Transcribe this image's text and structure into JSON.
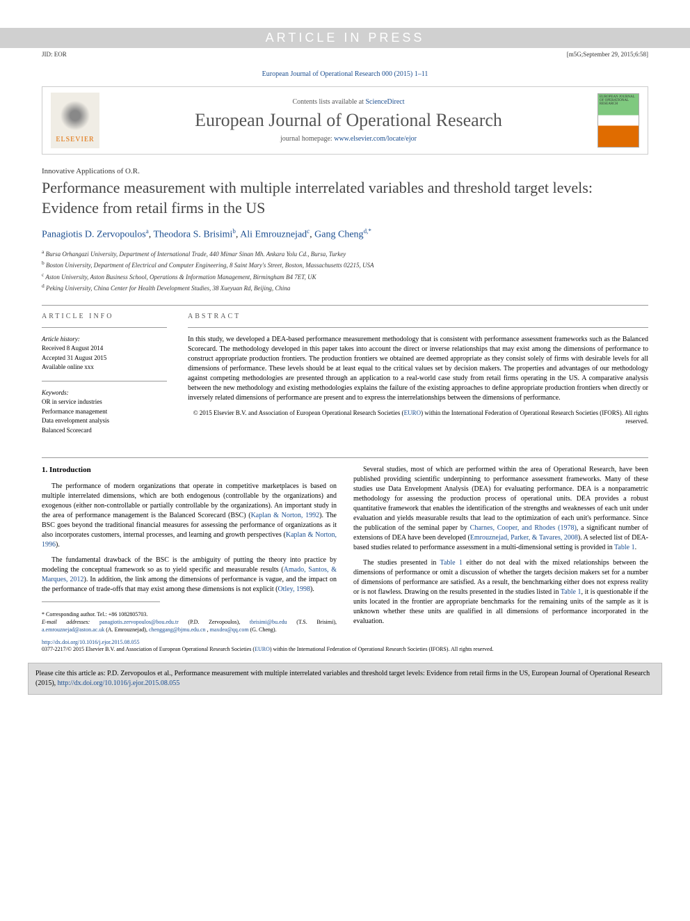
{
  "topbar": {
    "text": "ARTICLE IN PRESS"
  },
  "topmeta": {
    "left": "JID: EOR",
    "right": "[m5G;September 29, 2015;6:58]"
  },
  "journal_ref": "European Journal of Operational Research 000 (2015) 1–11",
  "header": {
    "elsevier": "ELSEVIER",
    "contents_prefix": "Contents lists available at ",
    "contents_link": "ScienceDirect",
    "journal_title": "European Journal of Operational Research",
    "homepage_prefix": "journal homepage: ",
    "homepage_url": "www.elsevier.com/locate/ejor",
    "cover_text": "EUROPEAN JOURNAL OF OPERATIONAL RESEARCH"
  },
  "section_label": "Innovative Applications of O.R.",
  "title": "Performance measurement with multiple interrelated variables and threshold target levels: Evidence from retail firms in the US",
  "authors_html": "Panagiotis D. Zervopoulos|a|, Theodora S. Brisimi|b|, Ali Emrouznejad|c|, Gang Cheng|d,*",
  "authors": [
    {
      "name": "Panagiotis D. Zervopoulos",
      "sup": "a"
    },
    {
      "name": "Theodora S. Brisimi",
      "sup": "b"
    },
    {
      "name": "Ali Emrouznejad",
      "sup": "c"
    },
    {
      "name": "Gang Cheng",
      "sup": "d,*"
    }
  ],
  "affiliations": [
    {
      "sup": "a",
      "text": "Bursa Orhangazi University, Department of International Trade, 440 Mimar Sinan Mh. Ankara Yolu Cd., Bursa, Turkey"
    },
    {
      "sup": "b",
      "text": "Boston University, Department of Electrical and Computer Engineering, 8 Saint Mary's Street, Boston, Massachusetts 02215, USA"
    },
    {
      "sup": "c",
      "text": "Aston University, Aston Business School, Operations & Information Management, Birmingham B4 7ET, UK"
    },
    {
      "sup": "d",
      "text": "Peking University, China Center for Health Development Studies, 38 Xueyuan Rd, Beijing, China"
    }
  ],
  "article_info": {
    "head": "ARTICLE INFO",
    "history_label": "Article history:",
    "history": [
      "Received 8 August 2014",
      "Accepted 31 August 2015",
      "Available online xxx"
    ],
    "keywords_label": "Keywords:",
    "keywords": [
      "OR in service industries",
      "Performance management",
      "Data envelopment analysis",
      "Balanced Scorecard"
    ]
  },
  "abstract": {
    "head": "ABSTRACT",
    "text": "In this study, we developed a DEA-based performance measurement methodology that is consistent with performance assessment frameworks such as the Balanced Scorecard. The methodology developed in this paper takes into account the direct or inverse relationships that may exist among the dimensions of performance to construct appropriate production frontiers. The production frontiers we obtained are deemed appropriate as they consist solely of firms with desirable levels for all dimensions of performance. These levels should be at least equal to the critical values set by decision makers. The properties and advantages of our methodology against competing methodologies are presented through an application to a real-world case study from retail firms operating in the US. A comparative analysis between the new methodology and existing methodologies explains the failure of the existing approaches to define appropriate production frontiers when directly or inversely related dimensions of performance are present and to express the interrelationships between the dimensions of performance.",
    "copyright_line1": "© 2015 Elsevier B.V. and Association of European Operational Research Societies (",
    "copyright_link": "EURO",
    "copyright_line2": ") within the International Federation of Operational Research Societies (IFORS). All rights reserved."
  },
  "section1": {
    "title": "1. Introduction",
    "left": [
      "The performance of modern organizations that operate in competitive marketplaces is based on multiple interrelated dimensions, which are both endogenous (controllable by the organizations) and exogenous (either non-controllable or partially controllable by the organizations). An important study in the area of performance management is the Balanced Scorecard (BSC) (|Kaplan & Norton, 1992|). The BSC goes beyond the traditional financial measures for assessing the performance of organizations as it also incorporates customers, internal processes, and learning and growth perspectives (|Kaplan & Norton, 1996|).",
      "The fundamental drawback of the BSC is the ambiguity of putting the theory into practice by modeling the conceptual framework so as to yield specific and measurable results (|Amado, Santos, & Marques, 2012|). In addition, the link among the dimensions of performance is vague, and the impact on the performance of trade-offs that may exist among these dimensions is not explicit (|Otley, 1998|)."
    ],
    "right": [
      "Several studies, most of which are performed within the area of Operational Research, have been published providing scientific underpinning to performance assessment frameworks. Many of these studies use Data Envelopment Analysis (DEA) for evaluating performance. DEA is a nonparametric methodology for assessing the production process of operational units. DEA provides a robust quantitative framework that enables the identification of the strengths and weaknesses of each unit under evaluation and yields measurable results that lead to the optimization of each unit's performance. Since the publication of the seminal paper by |Charnes, Cooper, and Rhodes (1978)|, a significant number of extensions of DEA have been developed (|Emrouznejad, Parker, & Tavares, 2008|). A selected list of DEA-based studies related to performance assessment in a multi-dimensional setting is provided in |Table 1|.",
      "The studies presented in |Table 1| either do not deal with the mixed relationships between the dimensions of performance or omit a discussion of whether the targets decision makers set for a number of dimensions of performance are satisfied. As a result, the benchmarking either does not express reality or is not flawless. Drawing on the results presented in the studies listed in |Table 1|, it is questionable if the units located in the frontier are appropriate benchmarks for the remaining units of the sample as it is unknown whether these units are qualified in all dimensions of performance incorporated in the evaluation."
    ]
  },
  "footnotes": {
    "corresp": "* Corresponding author. Tel.: +86 1082805703.",
    "email_label": "E-mail addresses:",
    "emails": [
      {
        "addr": "panagiotis.zervopoulos@bou.edu.tr",
        "who": "(P.D. Zervopoulos)"
      },
      {
        "addr": "tbrisimi@bu.edu",
        "who": "(T.S. Brisimi)"
      },
      {
        "addr": "a.emrouznejad@aston.ac.uk",
        "who": "(A. Emrouznejad)"
      },
      {
        "addr": "chenggang@bjmu.edu.cn",
        "who": ""
      },
      {
        "addr": "maxdea@qq.com",
        "who": "(G. Cheng)."
      }
    ]
  },
  "doi": {
    "url": "http://dx.doi.org/10.1016/j.ejor.2015.08.055",
    "issn_line": "0377-2217/© 2015 Elsevier B.V. and Association of European Operational Research Societies (",
    "euro": "EURO",
    "tail": ") within the International Federation of Operational Research Societies (IFORS). All rights reserved."
  },
  "citebox": {
    "prefix": "Please cite this article as: P.D. Zervopoulos et al., Performance measurement with multiple interrelated variables and threshold target levels: Evidence from retail firms in the US, European Journal of Operational Research (2015), ",
    "url": "http://dx.doi.org/10.1016/j.ejor.2015.08.055"
  },
  "colors": {
    "link": "#1a4d8f",
    "topbar_bg": "#d0d0d0",
    "cite_bg": "#dcdcdc"
  }
}
